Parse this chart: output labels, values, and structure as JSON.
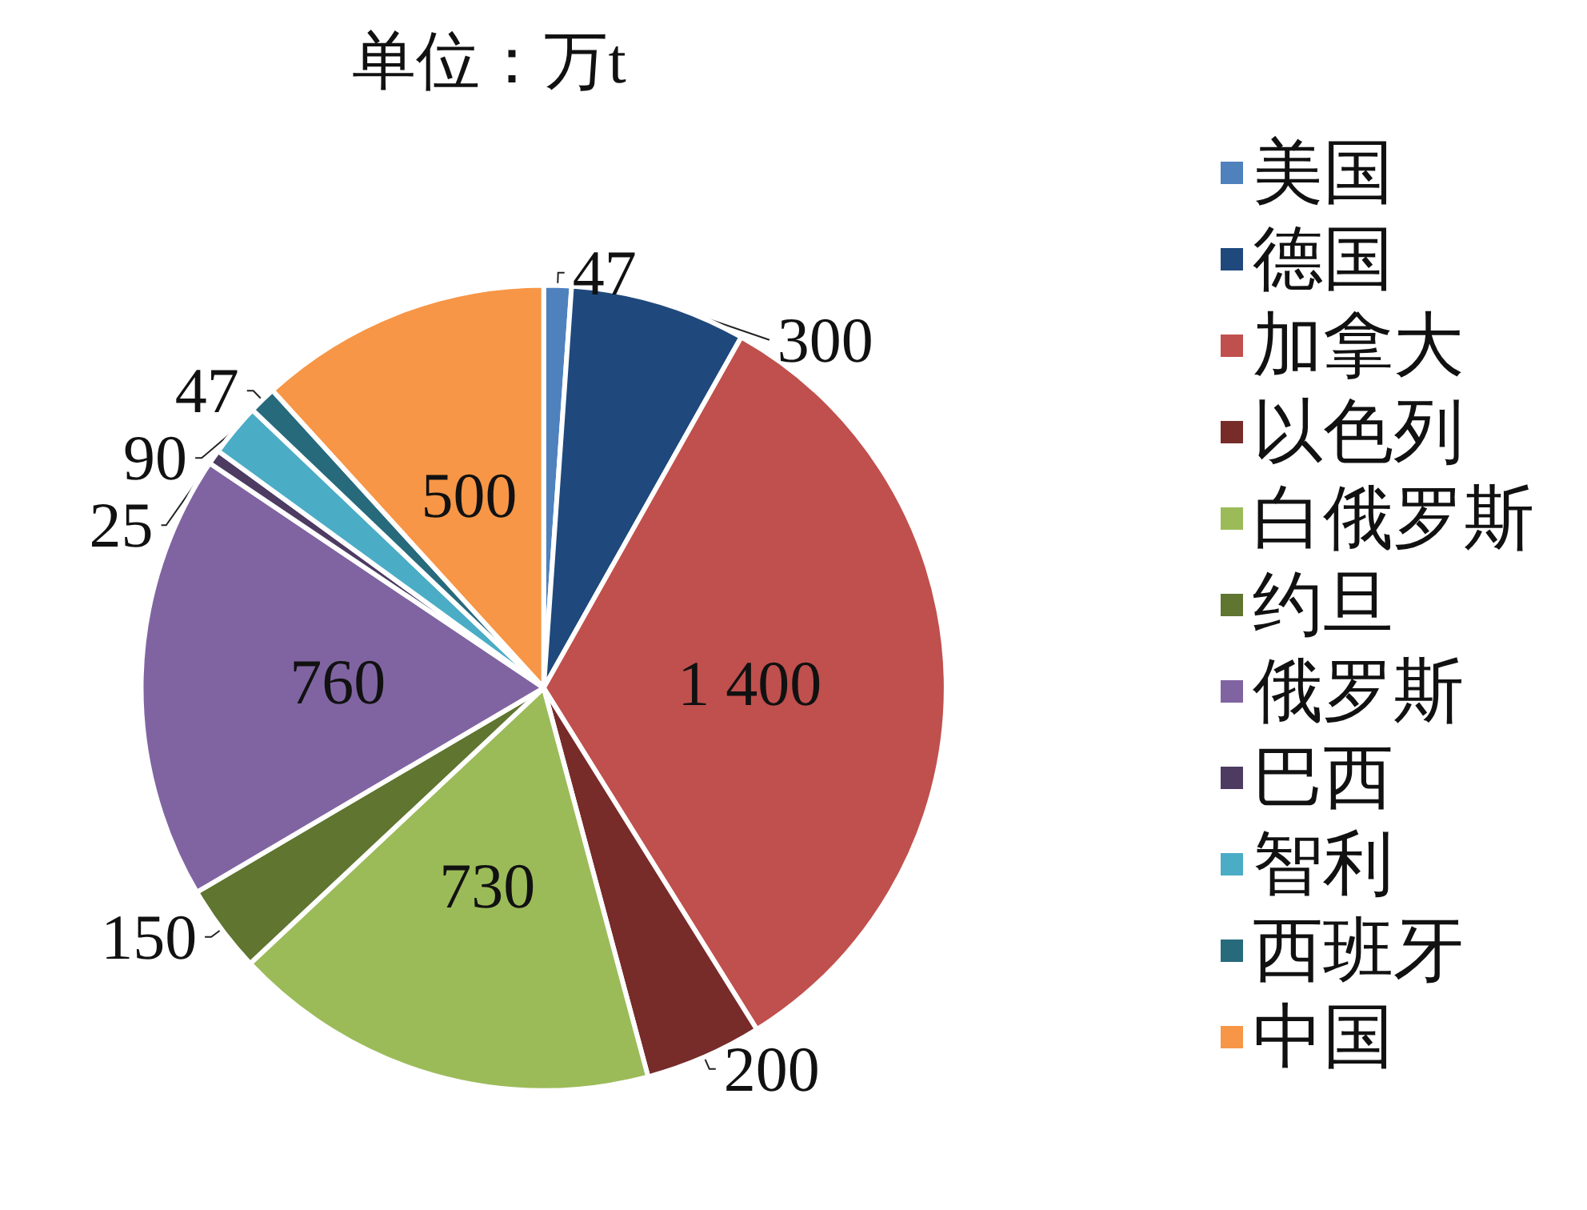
{
  "chart_data": {
    "type": "pie",
    "title": "单位：万t",
    "categories": [
      "美国",
      "德国",
      "加拿大",
      "以色列",
      "白俄罗斯",
      "约旦",
      "俄罗斯",
      "巴西",
      "智利",
      "西班牙",
      "中国"
    ],
    "values": [
      47,
      300,
      1400,
      200,
      730,
      150,
      760,
      25,
      90,
      47,
      500
    ],
    "value_labels": [
      "47",
      "300",
      "1 400",
      "200",
      "730",
      "150",
      "760",
      "25",
      "90",
      "47",
      "500"
    ],
    "colors": [
      "#4f81bd",
      "#1f497d",
      "#c0504d",
      "#772c2a",
      "#9bbb59",
      "#5f7530",
      "#8064a2",
      "#4d3b62",
      "#4bacc6",
      "#276a7c",
      "#f79646"
    ],
    "legend": "right"
  }
}
